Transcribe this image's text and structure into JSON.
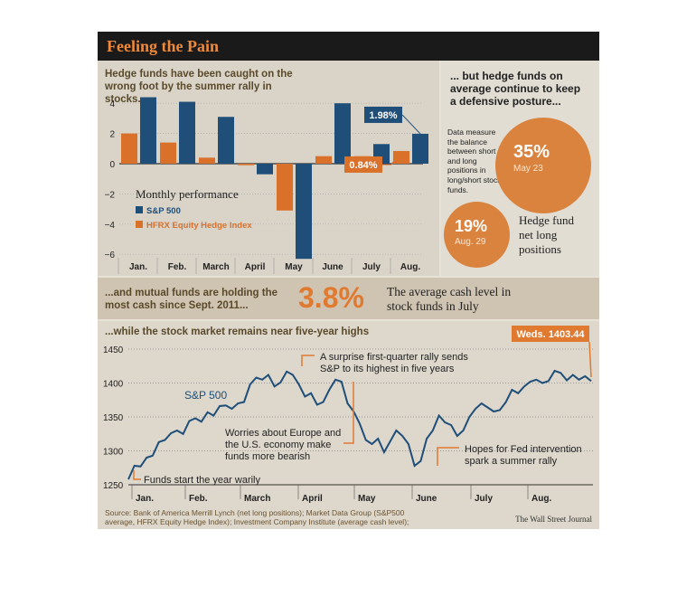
{
  "title": "Feeling the Pain",
  "panel_a_header": "Hedge funds have been caught on the wrong foot by the summer rally in stocks...",
  "panel_b_header": "... but hedge funds on average continue to keep a defensive posture...",
  "panel_b_note": "Data measure the balance between short and long positions in long/short stock funds.",
  "panel_b_label": "Hedge fund net long positions",
  "panel_c_header": "...and mutual funds are holding the most cash since Sept. 2011...",
  "panel_c_stat": "3.8%",
  "panel_c_stat_desc": "The average cash level in stock funds in July",
  "panel_d_header": "...while the stock market remains near five-year highs",
  "source": "Source: Bank of America Merrill Lynch (net long positions); Market Data Group (S&P500 average, HFRX Equity Hedge Index); Investment Company Institute (average cash level);",
  "credit": "The Wall Street Journal",
  "colors": {
    "sp500": "#1f4e79",
    "hfrx": "#d9712b",
    "accent": "#e07a30",
    "title_bg": "#1a1a1a"
  },
  "chart_data": [
    {
      "type": "bar",
      "title": "Monthly performance",
      "categories": [
        "Jan.",
        "Feb.",
        "March",
        "April",
        "May",
        "June",
        "July",
        "Aug."
      ],
      "series": [
        {
          "name": "S&P 500",
          "values": [
            4.4,
            4.1,
            3.1,
            -0.7,
            -6.3,
            4.0,
            1.3,
            1.98
          ]
        },
        {
          "name": "HFRX Equity Hedge Index",
          "values": [
            2.0,
            1.4,
            0.4,
            -0.1,
            -3.1,
            0.5,
            0.5,
            0.84
          ]
        }
      ],
      "yticks": [
        -6,
        -4,
        -2,
        0,
        2,
        4
      ],
      "ylim": [
        -6.3,
        4.5
      ],
      "data_labels": [
        "1.98%",
        "0.84%"
      ]
    },
    {
      "type": "pie",
      "title": "Hedge fund net long positions",
      "bubbles": [
        {
          "label": "May 23",
          "value": "35%"
        },
        {
          "label": "Aug. 29",
          "value": "19%"
        }
      ]
    },
    {
      "type": "line",
      "series_name": "S&P 500",
      "months": [
        "Jan.",
        "Feb.",
        "March",
        "April",
        "May",
        "June",
        "July",
        "Aug."
      ],
      "yticks": [
        1250,
        1300,
        1350,
        1400,
        1450
      ],
      "ylim": [
        1250,
        1450
      ],
      "values": [
        1258,
        1278,
        1277,
        1290,
        1293,
        1313,
        1316,
        1326,
        1330,
        1325,
        1344,
        1348,
        1343,
        1357,
        1352,
        1366,
        1367,
        1362,
        1370,
        1372,
        1398,
        1408,
        1405,
        1412,
        1395,
        1401,
        1417,
        1412,
        1398,
        1380,
        1385,
        1368,
        1372,
        1390,
        1405,
        1402,
        1370,
        1358,
        1340,
        1316,
        1310,
        1318,
        1298,
        1314,
        1330,
        1322,
        1310,
        1278,
        1285,
        1318,
        1330,
        1352,
        1342,
        1338,
        1322,
        1330,
        1350,
        1362,
        1370,
        1364,
        1358,
        1360,
        1372,
        1390,
        1385,
        1395,
        1402,
        1405,
        1400,
        1403,
        1418,
        1415,
        1404,
        1412,
        1405,
        1410,
        1403
      ],
      "annotations": [
        "A surprise first-quarter rally sends S&P to its highest in five years",
        "Worries about Europe and the U.S. economy make funds more bearish",
        "Hopes for Fed intervention spark a summer rally",
        "Funds start the year warily",
        "Weds. 1403.44"
      ]
    }
  ]
}
